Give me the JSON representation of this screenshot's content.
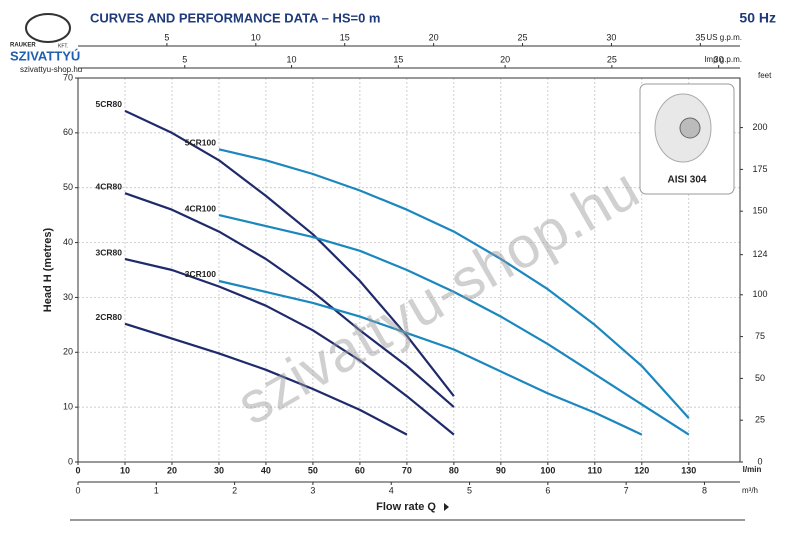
{
  "logo": {
    "brand": "SZIVATTYÚ",
    "top": "RAUKER",
    "suffix": "KFT.",
    "site": "szivattyu-shop.hu"
  },
  "watermark": "szivattyu-shop.hu",
  "inset": {
    "label": "AISI 304"
  },
  "chart_data": {
    "type": "line",
    "title": "CURVES AND PERFORMANCE DATA  –  HS=0 m",
    "subtitle": "50 Hz",
    "ylabel": "Head H (metres)",
    "xtitle": "Flow rate Q",
    "xlabel": "l/min",
    "y2label": "feet",
    "xlim": [
      0,
      140.9
    ],
    "xticks": [
      0,
      10,
      20,
      30,
      40,
      50,
      60,
      70,
      80,
      90,
      100,
      110,
      120,
      130
    ],
    "ylim": [
      0,
      70
    ],
    "yticks": [
      0,
      10,
      20,
      30,
      40,
      50,
      60,
      70
    ],
    "y2lim": [
      0,
      229.66
    ],
    "y2ticks": [
      0,
      25,
      50,
      75,
      100,
      124,
      150,
      175,
      200
    ],
    "grid": true,
    "x_axes": [
      {
        "label": "m³/h",
        "position": "bottom",
        "lim": [
          0,
          8.454
        ],
        "ticks": [
          0,
          1,
          2,
          3,
          4,
          5,
          6,
          7,
          8
        ]
      },
      {
        "label": "US g.p.m.",
        "position": "top",
        "lim": [
          0,
          37.23
        ],
        "ticks": [
          5,
          10,
          15,
          20,
          25,
          30,
          35
        ]
      },
      {
        "label": "Imp g.p.m.",
        "position": "top",
        "lim": [
          0,
          31.0
        ],
        "ticks": [
          5,
          10,
          15,
          20,
          25,
          30
        ]
      }
    ],
    "series": [
      {
        "name": "2CR80",
        "color": "#1f2a6b",
        "x": [
          10,
          20,
          30,
          40,
          50,
          60,
          70
        ],
        "values": [
          25.2,
          22.5,
          19.8,
          16.8,
          13.3,
          9.5,
          5
        ]
      },
      {
        "name": "3CR80",
        "color": "#1f2a6b",
        "x": [
          10,
          20,
          30,
          40,
          50,
          60,
          70,
          80
        ],
        "values": [
          37,
          35,
          32,
          28.5,
          24,
          18.5,
          12,
          5
        ]
      },
      {
        "name": "4CR80",
        "color": "#1f2a6b",
        "x": [
          10,
          20,
          30,
          40,
          50,
          60,
          70,
          80
        ],
        "values": [
          49,
          46,
          42,
          37,
          31,
          24,
          17.5,
          10
        ]
      },
      {
        "name": "5CR80",
        "color": "#1f2a6b",
        "x": [
          10,
          20,
          30,
          40,
          50,
          60,
          70,
          80
        ],
        "values": [
          64,
          60,
          55,
          48.5,
          41.5,
          33,
          23,
          12
        ]
      },
      {
        "name": "3CR100",
        "color": "#1b87bf",
        "x": [
          30,
          40,
          50,
          60,
          70,
          80,
          90,
          100,
          110,
          120
        ],
        "values": [
          33,
          31,
          29,
          26.5,
          23.5,
          20.5,
          16.5,
          12.5,
          9,
          5
        ]
      },
      {
        "name": "4CR100",
        "color": "#1b87bf",
        "x": [
          30,
          40,
          50,
          60,
          70,
          80,
          90,
          100,
          110,
          120,
          130
        ],
        "values": [
          45,
          43,
          41,
          38.5,
          35,
          31,
          26.5,
          21.5,
          16,
          10.5,
          5
        ]
      },
      {
        "name": "5CR100",
        "color": "#1b87bf",
        "x": [
          30,
          40,
          50,
          60,
          70,
          80,
          90,
          100,
          110,
          120,
          130
        ],
        "values": [
          57,
          55,
          52.5,
          49.5,
          46,
          42,
          37,
          31.5,
          25,
          17.5,
          8
        ]
      }
    ]
  }
}
